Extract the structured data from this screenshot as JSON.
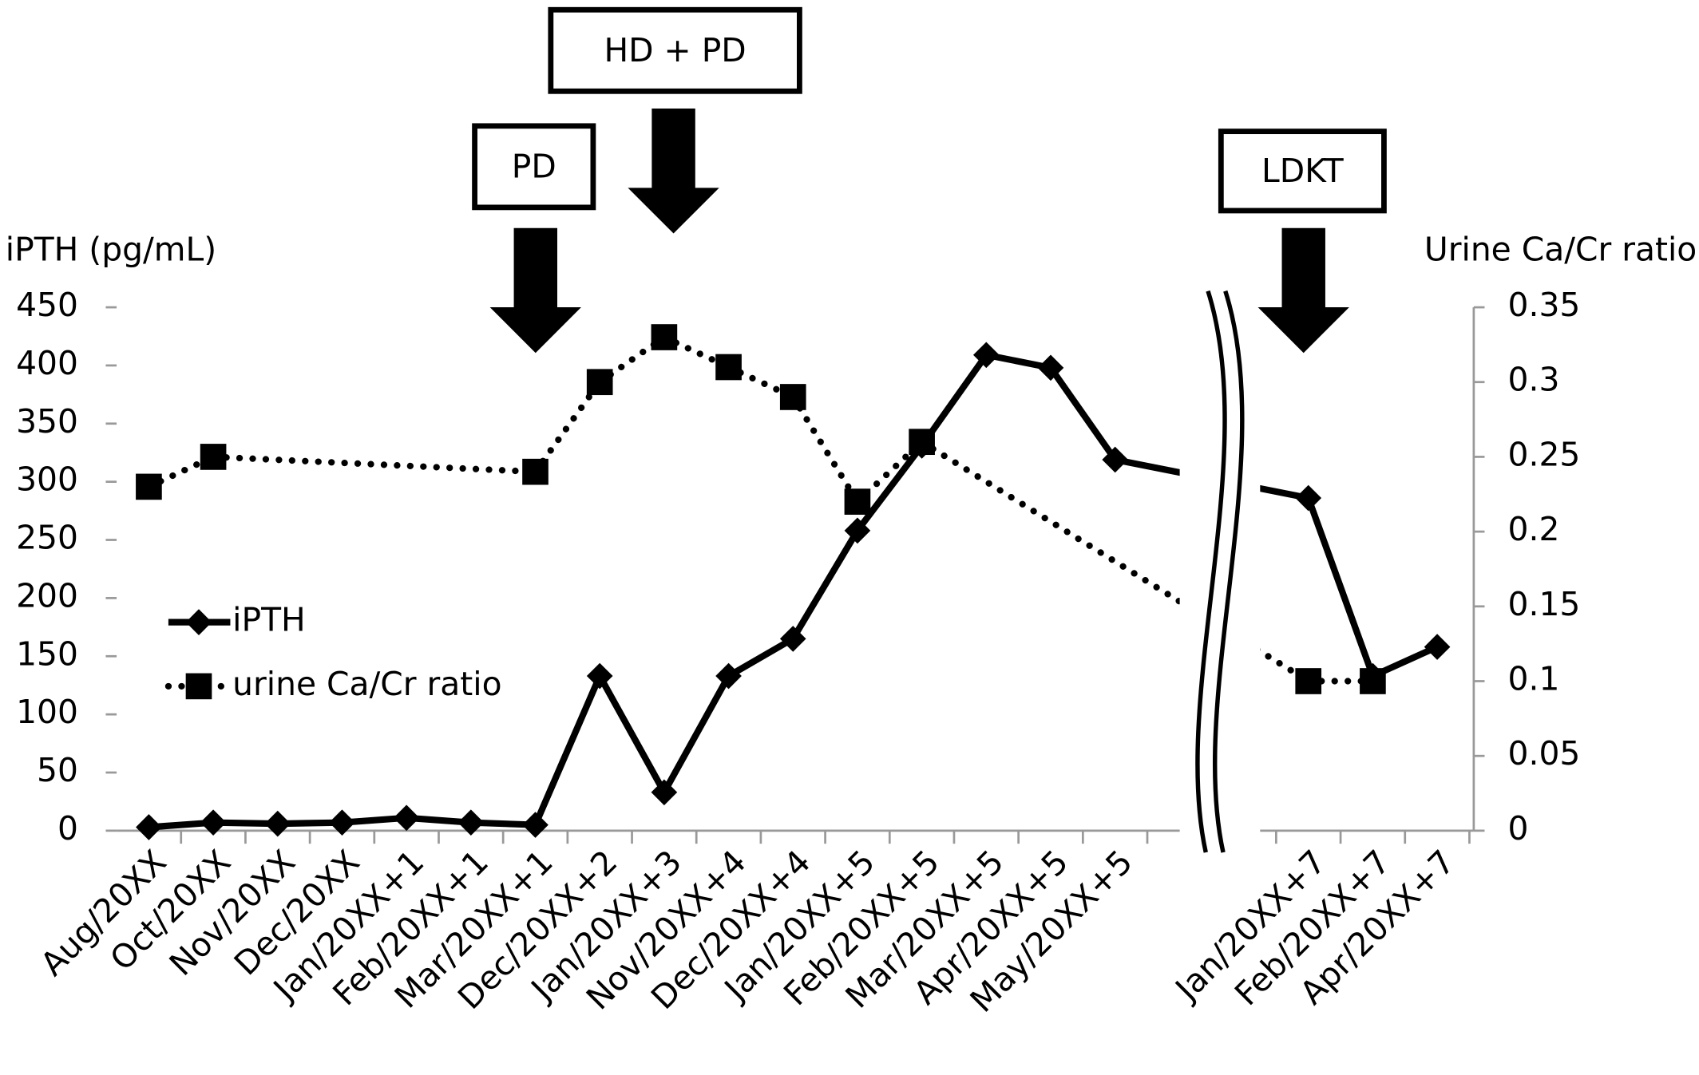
{
  "chart_data": {
    "type": "line",
    "y_label": "iPTH (pg/mL)",
    "y2_label": "Urine Ca/Cr ratio",
    "annotations": [
      "PD",
      "HD + PD",
      "LDKT"
    ],
    "categories": [
      "Aug/20XX",
      "Oct/20XX",
      "Nov/20XX",
      "Dec/20XX",
      "Jan/20XX+1",
      "Feb/20XX+1",
      "Mar/20XX+1",
      "Dec/20XX+2",
      "Jan/20XX+3",
      "Nov/20XX+4",
      "Dec/20XX+4",
      "Jan/20XX+5",
      "Feb/20XX+5",
      "Mar/20XX+5",
      "Apr/20XX+5",
      "May/20XX+5",
      null,
      null,
      "Jan/20XX+7",
      "Feb/20XX+7",
      "Apr/20XX+7"
    ],
    "series": [
      {
        "name": "iPTH",
        "color": "#000000",
        "marker": "diamond",
        "dash": "solid",
        "values": [
          3,
          7,
          6,
          7,
          11,
          7,
          5,
          133,
          33,
          133,
          165,
          258,
          331,
          409,
          398,
          319,
          null,
          null,
          286,
          133,
          158
        ]
      },
      {
        "name": "urine Ca/Cr ratio",
        "color": "#000000",
        "marker": "square",
        "dash": "dotted",
        "axis": "y2",
        "values": [
          0.23,
          0.25,
          null,
          null,
          null,
          null,
          0.24,
          0.3,
          0.33,
          0.31,
          0.29,
          0.22,
          0.26,
          null,
          null,
          null,
          null,
          null,
          0.1,
          0.1,
          null
        ]
      }
    ],
    "connect_gaps": true,
    "ylim": [
      0,
      450
    ],
    "yticks": [
      0,
      50,
      100,
      150,
      200,
      250,
      300,
      350,
      400,
      450
    ],
    "y2lim": [
      0,
      0.35
    ],
    "y2ticks": [
      0,
      0.05,
      0.1,
      0.15,
      0.2,
      0.25,
      0.3,
      0.35
    ],
    "grid": false,
    "legend": "left"
  }
}
